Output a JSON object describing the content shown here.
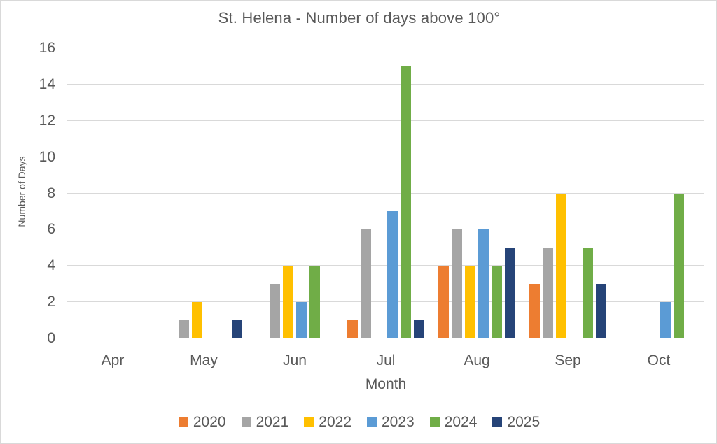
{
  "window": {
    "background": "#FFFFFF",
    "border_color": "#D9D9D9"
  },
  "chart_data": {
    "type": "bar",
    "title": "St. Helena - Number of days above 100°",
    "xlabel": "Month",
    "ylabel": "Number of Days",
    "ylim": [
      0,
      16
    ],
    "yticks": [
      0,
      2,
      4,
      6,
      8,
      10,
      12,
      14,
      16
    ],
    "categories": [
      "Apr",
      "May",
      "Jun",
      "Jul",
      "Aug",
      "Sep",
      "Oct"
    ],
    "series": [
      {
        "name": "2020",
        "color": "#ED7D31",
        "values": [
          0,
          0,
          0,
          1,
          4,
          3,
          0
        ]
      },
      {
        "name": "2021",
        "color": "#A5A5A5",
        "values": [
          0,
          1,
          3,
          6,
          6,
          5,
          0
        ]
      },
      {
        "name": "2022",
        "color": "#FFC000",
        "values": [
          0,
          2,
          4,
          0,
          4,
          8,
          0
        ]
      },
      {
        "name": "2023",
        "color": "#5B9BD5",
        "values": [
          0,
          0,
          2,
          7,
          6,
          0,
          2
        ]
      },
      {
        "name": "2024",
        "color": "#70AD47",
        "values": [
          0,
          0,
          4,
          15,
          4,
          5,
          8
        ]
      },
      {
        "name": "2025",
        "color": "#264478",
        "values": [
          0,
          1,
          0,
          1,
          5,
          3,
          0
        ]
      }
    ],
    "grid": true,
    "legend_position": "bottom",
    "gridline_color": "#D9D9D9",
    "axis_line_color": "#C6C6C6",
    "text_color": "#595959"
  }
}
